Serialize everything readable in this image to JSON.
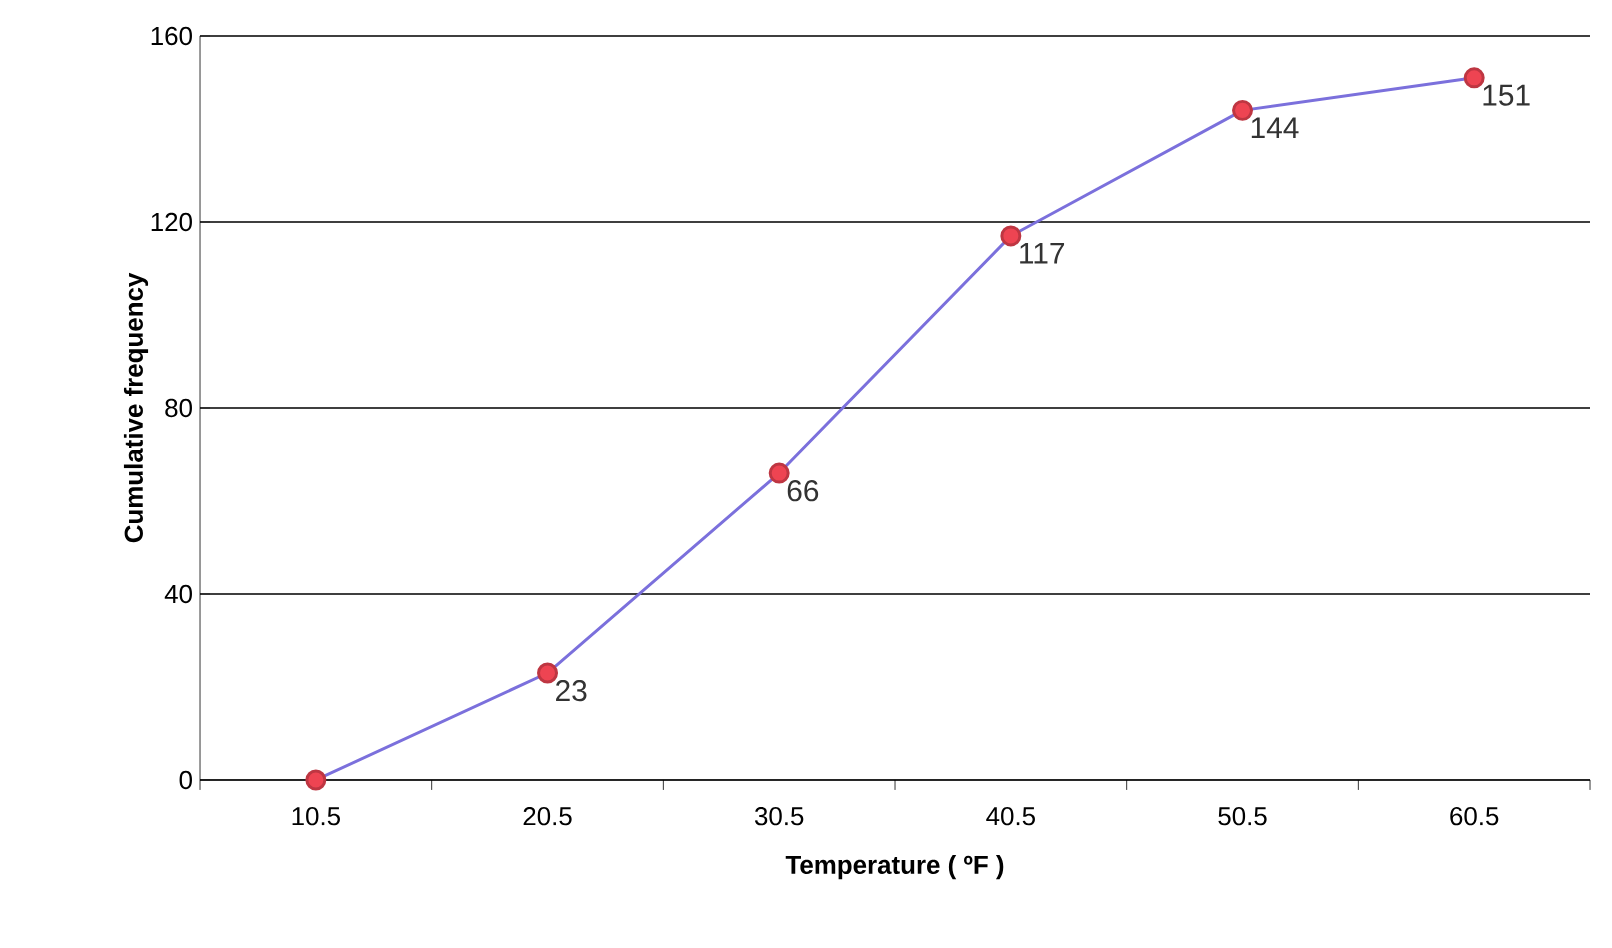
{
  "chart_data": {
    "type": "line",
    "xlabel": "Temperature ( ºF )",
    "ylabel": "Cumulative frequency",
    "categories": [
      "10.5",
      "20.5",
      "30.5",
      "40.5",
      "50.5",
      "60.5"
    ],
    "values": [
      0,
      23,
      66,
      117,
      144,
      151
    ],
    "value_labels": [
      null,
      "23",
      "66",
      "117",
      "144",
      "151"
    ],
    "color": "#7b70dc",
    "marker": "circle",
    "colors": [
      "#ee4452",
      "#ee4452",
      "#ee4452",
      "#ee4452",
      "#ee4452",
      "#ee4452"
    ],
    "ylim": [
      0,
      160
    ],
    "yticks": [
      0,
      40,
      80,
      120,
      160
    ],
    "grid": "y"
  }
}
